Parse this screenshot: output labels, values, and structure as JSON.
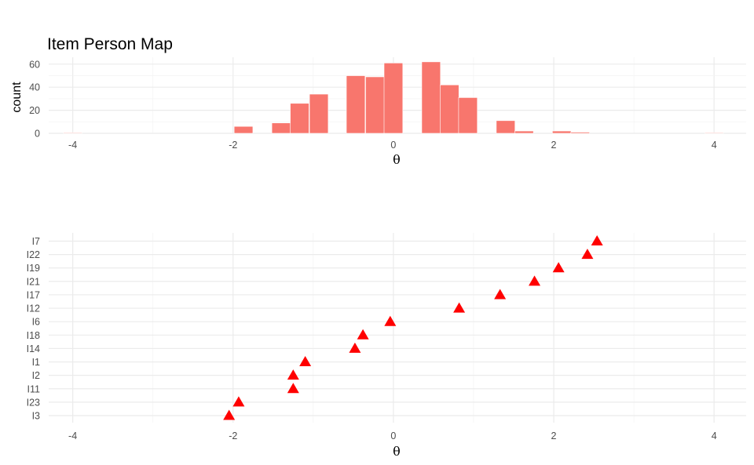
{
  "title": "Item Person Map",
  "chart_data": [
    {
      "type": "bar",
      "panel": "person-histogram",
      "xlabel": "θ",
      "ylabel": "count",
      "xlim": [
        -4.3,
        4.4
      ],
      "ylim": [
        0,
        66
      ],
      "x_ticks": [
        -4,
        -2,
        0,
        2,
        4
      ],
      "x_tick_labels": [
        "-4",
        "-2",
        "0",
        "2",
        "4"
      ],
      "y_ticks": [
        0,
        20,
        40,
        60
      ],
      "y_tick_labels": [
        "0",
        "20",
        "40",
        "60"
      ],
      "grid": true,
      "bar_color": "#F8766D",
      "bins": [
        {
          "x": -4.0,
          "count": 0
        },
        {
          "x": -1.87,
          "count": 6
        },
        {
          "x": -1.4,
          "count": 9
        },
        {
          "x": -1.17,
          "count": 26
        },
        {
          "x": -0.93,
          "count": 34
        },
        {
          "x": -0.47,
          "count": 50
        },
        {
          "x": -0.23,
          "count": 49
        },
        {
          "x": 0.0,
          "count": 61
        },
        {
          "x": 0.47,
          "count": 62
        },
        {
          "x": 0.7,
          "count": 42
        },
        {
          "x": 0.93,
          "count": 31
        },
        {
          "x": 1.4,
          "count": 11
        },
        {
          "x": 1.63,
          "count": 2
        },
        {
          "x": 2.1,
          "count": 2
        },
        {
          "x": 2.33,
          "count": 1
        },
        {
          "x": 4.0,
          "count": 0
        }
      ]
    },
    {
      "type": "scatter",
      "panel": "item-difficulty",
      "xlabel": "θ",
      "ylabel": "",
      "xlim": [
        -4.3,
        4.4
      ],
      "x_ticks": [
        -4,
        -2,
        0,
        2,
        4
      ],
      "x_tick_labels": [
        "-4",
        "-2",
        "0",
        "2",
        "4"
      ],
      "grid": true,
      "marker": "triangle",
      "marker_color": "#FF0000",
      "categories": [
        "I3",
        "I23",
        "I11",
        "I2",
        "I1",
        "I14",
        "I18",
        "I6",
        "I12",
        "I17",
        "I21",
        "I19",
        "I22",
        "I7"
      ],
      "points": [
        {
          "item": "I3",
          "x": -2.05
        },
        {
          "item": "I23",
          "x": -1.93
        },
        {
          "item": "I11",
          "x": -1.25
        },
        {
          "item": "I2",
          "x": -1.25
        },
        {
          "item": "I1",
          "x": -1.1
        },
        {
          "item": "I14",
          "x": -0.48
        },
        {
          "item": "I18",
          "x": -0.38
        },
        {
          "item": "I6",
          "x": -0.04
        },
        {
          "item": "I12",
          "x": 0.82
        },
        {
          "item": "I17",
          "x": 1.33
        },
        {
          "item": "I21",
          "x": 1.76
        },
        {
          "item": "I19",
          "x": 2.06
        },
        {
          "item": "I22",
          "x": 2.42
        },
        {
          "item": "I7",
          "x": 2.54
        }
      ]
    }
  ]
}
